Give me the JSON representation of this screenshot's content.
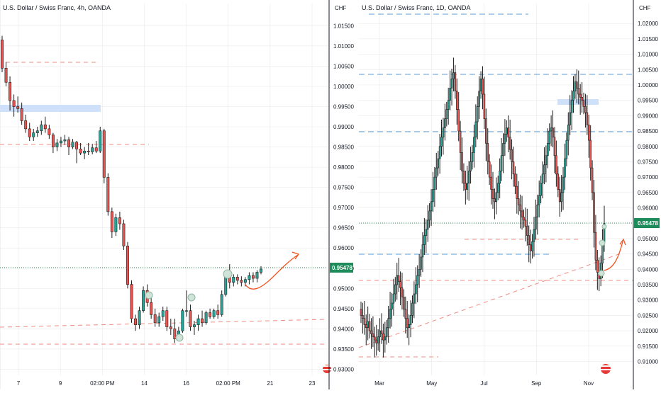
{
  "colors": {
    "up": "#26a69a",
    "down": "#ef5350",
    "candle_stroke": "#1e1e1e",
    "resistance_red": "#f28b82",
    "support_blue": "#5b9bd5",
    "zone_blue": "#cfe0fb",
    "price_line": "#2e8b57",
    "projection": "#f4511e",
    "price_badge": "#1e8c5a",
    "grid": "#e6e6e6"
  },
  "chart_data": [
    {
      "type": "candlestick",
      "title": "U.S. Dollar / Swiss Franc, 4h, OANDA",
      "ylabel": "CHF",
      "ylim": [
        0.9285,
        1.0205
      ],
      "yticks": [
        "1.01500",
        "1.01000",
        "1.00500",
        "1.00000",
        "0.99500",
        "0.99000",
        "0.98500",
        "0.98000",
        "0.97500",
        "0.97000",
        "0.96500",
        "0.96000",
        "0.95500",
        "0.95000",
        "0.94500",
        "0.94000",
        "0.93500",
        "0.93000"
      ],
      "xticks": [
        "7",
        "9",
        "02:00 PM",
        "14",
        "16",
        "02:00 PM",
        "21",
        "23"
      ],
      "last_price": "0.95478",
      "candles": [
        {
          "o": 1.0115,
          "h": 1.0125,
          "l": 1.0035,
          "c": 1.0045
        },
        {
          "o": 1.0045,
          "h": 1.006,
          "l": 1.0,
          "c": 1.001
        },
        {
          "o": 1.001,
          "h": 1.0025,
          "l": 0.994,
          "c": 0.9965
        },
        {
          "o": 0.9965,
          "h": 0.998,
          "l": 0.9925,
          "c": 0.995
        },
        {
          "o": 0.995,
          "h": 0.9975,
          "l": 0.9935,
          "c": 0.9945
        },
        {
          "o": 0.9945,
          "h": 0.996,
          "l": 0.9905,
          "c": 0.9915
        },
        {
          "o": 0.9915,
          "h": 0.993,
          "l": 0.9885,
          "c": 0.9895
        },
        {
          "o": 0.9895,
          "h": 0.991,
          "l": 0.9865,
          "c": 0.9875
        },
        {
          "o": 0.9875,
          "h": 0.9895,
          "l": 0.9865,
          "c": 0.9885
        },
        {
          "o": 0.9885,
          "h": 0.99,
          "l": 0.9875,
          "c": 0.989
        },
        {
          "o": 0.989,
          "h": 0.9915,
          "l": 0.988,
          "c": 0.9905
        },
        {
          "o": 0.9905,
          "h": 0.9925,
          "l": 0.9885,
          "c": 0.9895
        },
        {
          "o": 0.9895,
          "h": 0.9905,
          "l": 0.987,
          "c": 0.988
        },
        {
          "o": 0.988,
          "h": 0.9885,
          "l": 0.9835,
          "c": 0.985
        },
        {
          "o": 0.985,
          "h": 0.987,
          "l": 0.984,
          "c": 0.986
        },
        {
          "o": 0.986,
          "h": 0.9875,
          "l": 0.985,
          "c": 0.9865
        },
        {
          "o": 0.9865,
          "h": 0.988,
          "l": 0.9855,
          "c": 0.9868
        },
        {
          "o": 0.9868,
          "h": 0.9875,
          "l": 0.983,
          "c": 0.985
        },
        {
          "o": 0.985,
          "h": 0.987,
          "l": 0.9845,
          "c": 0.9862
        },
        {
          "o": 0.9862,
          "h": 0.9865,
          "l": 0.981,
          "c": 0.9845
        },
        {
          "o": 0.9845,
          "h": 0.986,
          "l": 0.983,
          "c": 0.9835
        },
        {
          "o": 0.9835,
          "h": 0.985,
          "l": 0.982,
          "c": 0.984
        },
        {
          "o": 0.984,
          "h": 0.986,
          "l": 0.983,
          "c": 0.9838
        },
        {
          "o": 0.9838,
          "h": 0.9858,
          "l": 0.9832,
          "c": 0.9848
        },
        {
          "o": 0.9848,
          "h": 0.9865,
          "l": 0.9835,
          "c": 0.984
        },
        {
          "o": 0.984,
          "h": 0.99,
          "l": 0.9835,
          "c": 0.989
        },
        {
          "o": 0.989,
          "h": 0.9895,
          "l": 0.976,
          "c": 0.9775
        },
        {
          "o": 0.9775,
          "h": 0.9785,
          "l": 0.968,
          "c": 0.969
        },
        {
          "o": 0.969,
          "h": 0.97,
          "l": 0.9625,
          "c": 0.964
        },
        {
          "o": 0.964,
          "h": 0.9685,
          "l": 0.963,
          "c": 0.9675
        },
        {
          "o": 0.9675,
          "h": 0.969,
          "l": 0.9645,
          "c": 0.966
        },
        {
          "o": 0.966,
          "h": 0.967,
          "l": 0.9595,
          "c": 0.9605
        },
        {
          "o": 0.9605,
          "h": 0.9615,
          "l": 0.95,
          "c": 0.951
        },
        {
          "o": 0.951,
          "h": 0.952,
          "l": 0.9415,
          "c": 0.9425
        },
        {
          "o": 0.9425,
          "h": 0.9435,
          "l": 0.9395,
          "c": 0.941
        },
        {
          "o": 0.941,
          "h": 0.9455,
          "l": 0.94,
          "c": 0.9445
        },
        {
          "o": 0.9445,
          "h": 0.9505,
          "l": 0.944,
          "c": 0.9495
        },
        {
          "o": 0.9495,
          "h": 0.951,
          "l": 0.9455,
          "c": 0.9465
        },
        {
          "o": 0.9465,
          "h": 0.948,
          "l": 0.9425,
          "c": 0.9435
        },
        {
          "o": 0.9435,
          "h": 0.945,
          "l": 0.9405,
          "c": 0.9415
        },
        {
          "o": 0.9415,
          "h": 0.944,
          "l": 0.9405,
          "c": 0.943
        },
        {
          "o": 0.943,
          "h": 0.9455,
          "l": 0.942,
          "c": 0.9445
        },
        {
          "o": 0.9445,
          "h": 0.9455,
          "l": 0.9395,
          "c": 0.9405
        },
        {
          "o": 0.9405,
          "h": 0.9425,
          "l": 0.9385,
          "c": 0.94
        },
        {
          "o": 0.94,
          "h": 0.9425,
          "l": 0.9365,
          "c": 0.9375
        },
        {
          "o": 0.9375,
          "h": 0.9405,
          "l": 0.937,
          "c": 0.9395
        },
        {
          "o": 0.9395,
          "h": 0.945,
          "l": 0.939,
          "c": 0.9445
        },
        {
          "o": 0.9445,
          "h": 0.9495,
          "l": 0.943,
          "c": 0.9445
        },
        {
          "o": 0.9445,
          "h": 0.946,
          "l": 0.9395,
          "c": 0.9405
        },
        {
          "o": 0.9405,
          "h": 0.942,
          "l": 0.9385,
          "c": 0.941
        },
        {
          "o": 0.941,
          "h": 0.9435,
          "l": 0.9395,
          "c": 0.9425
        },
        {
          "o": 0.9425,
          "h": 0.9445,
          "l": 0.9405,
          "c": 0.9415
        },
        {
          "o": 0.9415,
          "h": 0.9445,
          "l": 0.941,
          "c": 0.944
        },
        {
          "o": 0.944,
          "h": 0.945,
          "l": 0.9425,
          "c": 0.943
        },
        {
          "o": 0.943,
          "h": 0.945,
          "l": 0.9425,
          "c": 0.9445
        },
        {
          "o": 0.9445,
          "h": 0.946,
          "l": 0.9425,
          "c": 0.9435
        },
        {
          "o": 0.9435,
          "h": 0.9495,
          "l": 0.943,
          "c": 0.9485
        },
        {
          "o": 0.9485,
          "h": 0.9545,
          "l": 0.948,
          "c": 0.9535
        },
        {
          "o": 0.9535,
          "h": 0.956,
          "l": 0.95,
          "c": 0.9515
        },
        {
          "o": 0.9515,
          "h": 0.9535,
          "l": 0.9505,
          "c": 0.9528
        },
        {
          "o": 0.9528,
          "h": 0.9535,
          "l": 0.951,
          "c": 0.952
        },
        {
          "o": 0.952,
          "h": 0.953,
          "l": 0.9505,
          "c": 0.9515
        },
        {
          "o": 0.9515,
          "h": 0.9528,
          "l": 0.9505,
          "c": 0.9522
        },
        {
          "o": 0.9522,
          "h": 0.954,
          "l": 0.951,
          "c": 0.9532
        },
        {
          "o": 0.9532,
          "h": 0.954,
          "l": 0.9515,
          "c": 0.9525
        },
        {
          "o": 0.9525,
          "h": 0.9545,
          "l": 0.9515,
          "c": 0.954
        },
        {
          "o": 0.954,
          "h": 0.9555,
          "l": 0.9535,
          "c": 0.9548
        }
      ]
    },
    {
      "type": "candlestick",
      "title": "U.S. Dollar / Swiss Franc, 1D, OANDA",
      "ylabel": "CHF",
      "ylim": [
        0.9055,
        1.0265
      ],
      "yticks": [
        "1.02000",
        "1.01500",
        "1.01000",
        "1.00500",
        "1.00000",
        "0.99500",
        "0.99000",
        "0.98500",
        "0.98000",
        "0.97500",
        "0.97000",
        "0.96500",
        "0.96000",
        "0.95500",
        "0.95000",
        "0.94500",
        "0.94000",
        "0.93500",
        "0.93000",
        "0.92500",
        "0.92000",
        "0.91500",
        "0.91000"
      ],
      "xticks": [
        "Mar",
        "May",
        "Jul",
        "Sep",
        "Nov"
      ],
      "last_price": "0.95478",
      "closes": [
        0.925,
        0.924,
        0.922,
        0.921,
        0.923,
        0.92,
        0.919,
        0.918,
        0.917,
        0.916,
        0.918,
        0.92,
        0.919,
        0.917,
        0.918,
        0.921,
        0.924,
        0.927,
        0.929,
        0.932,
        0.935,
        0.938,
        0.936,
        0.934,
        0.931,
        0.927,
        0.924,
        0.921,
        0.922,
        0.925,
        0.929,
        0.932,
        0.935,
        0.938,
        0.94,
        0.944,
        0.948,
        0.951,
        0.953,
        0.956,
        0.959,
        0.962,
        0.966,
        0.97,
        0.973,
        0.976,
        0.98,
        0.983,
        0.986,
        0.989,
        0.992,
        0.995,
        0.999,
        1.002,
        1.004,
        0.998,
        0.992,
        0.985,
        0.978,
        0.972,
        0.968,
        0.966,
        0.968,
        0.972,
        0.975,
        0.978,
        0.983,
        0.988,
        0.993,
        0.998,
        1.002,
        0.997,
        0.989,
        0.981,
        0.975,
        0.97,
        0.966,
        0.963,
        0.962,
        0.965,
        0.968,
        0.972,
        0.977,
        0.981,
        0.984,
        0.986,
        0.983,
        0.979,
        0.975,
        0.971,
        0.967,
        0.963,
        0.961,
        0.959,
        0.957,
        0.956,
        0.954,
        0.951,
        0.948,
        0.946,
        0.949,
        0.953,
        0.957,
        0.961,
        0.964,
        0.968,
        0.971,
        0.974,
        0.977,
        0.981,
        0.985,
        0.986,
        0.983,
        0.977,
        0.971,
        0.966,
        0.962,
        0.965,
        0.97,
        0.976,
        0.982,
        0.987,
        0.991,
        0.995,
        0.998,
        1.001,
        0.999,
        0.997,
        0.996,
        0.995,
        0.993,
        0.991,
        0.987,
        0.982,
        0.973,
        0.965,
        0.952,
        0.943,
        0.939,
        0.937,
        0.942,
        0.949,
        0.955
      ]
    }
  ],
  "icons": [
    "flag-icon-left",
    "flag-icon-right"
  ]
}
